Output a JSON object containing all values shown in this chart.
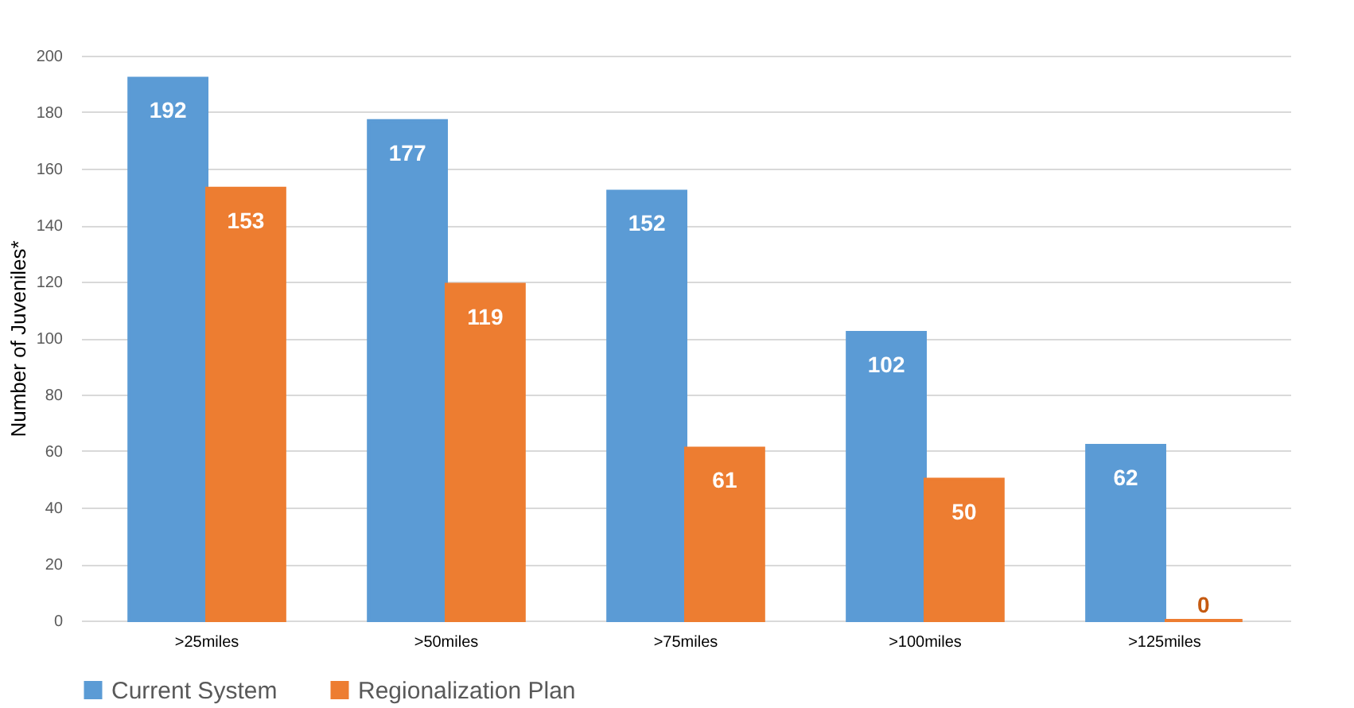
{
  "chart_data": {
    "type": "bar",
    "ylabel": "Number of Juveniles*",
    "categories": [
      ">25miles",
      ">50miles",
      ">75miles",
      ">100miles",
      ">125miles"
    ],
    "series": [
      {
        "name": "Current System",
        "color": "#5b9bd5",
        "values": [
          192,
          177,
          152,
          102,
          62
        ]
      },
      {
        "name": "Regionalization Plan",
        "color": "#ed7d31",
        "values": [
          153,
          119,
          61,
          50,
          0
        ]
      }
    ],
    "ylim": [
      0,
      200
    ],
    "yticks": [
      0,
      20,
      40,
      60,
      80,
      100,
      120,
      140,
      160,
      180,
      200
    ],
    "grid": "y",
    "legend": "bottom",
    "data_labels": true
  }
}
